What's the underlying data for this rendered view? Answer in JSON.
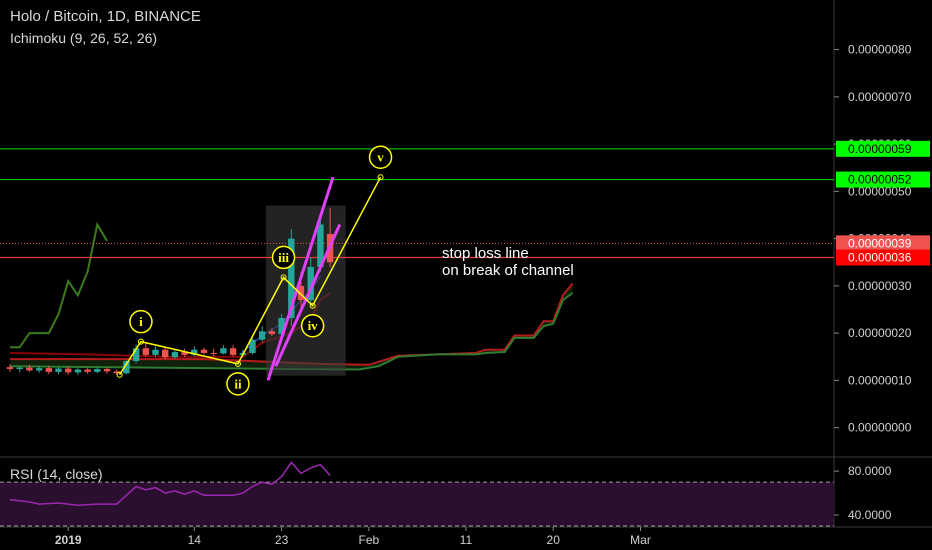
{
  "header": {
    "title": "Holo / Bitcoin, 1D, BINANCE",
    "indicator": "Ichimoku (9, 26, 52, 26)"
  },
  "rsi_label": "RSI (14, close)",
  "annotation": [
    "stop loss line",
    "on break of channel"
  ],
  "colors": {
    "background": "#000000",
    "bull": "#26a69a",
    "bear": "#ef5350",
    "lagging": "#3d7a1e",
    "cloud_green": "#2e7d32",
    "cloud_red": "#b71c1c",
    "wave": "#ffff00",
    "channel": "#e040fb",
    "target_line": "#00e000",
    "stop_line": "#e53935",
    "rsi": "#9c27b0"
  },
  "chart_data": [
    {
      "type": "candlestick",
      "title": "Holo / Bitcoin, 1D, BINANCE",
      "x_ticks": [
        {
          "label": "2019",
          "day": 6
        },
        {
          "label": "14",
          "day": 19
        },
        {
          "label": "23",
          "day": 28
        },
        {
          "label": "Feb",
          "day": 37
        },
        {
          "label": "11",
          "day": 47
        },
        {
          "label": "20",
          "day": 56
        },
        {
          "label": "Mar",
          "day": 65
        }
      ],
      "y_ticks": [
        "0.00000080",
        "0.00000070",
        "0.00000060",
        "0.00000050",
        "0.00000040",
        "0.00000030",
        "0.00000020",
        "0.00000010",
        "0.00000000"
      ],
      "y_tick_values": [
        0.8,
        0.7,
        0.6,
        0.5,
        0.4,
        0.3,
        0.2,
        0.1,
        0.0
      ],
      "y_unit": "x1e-6 BTC",
      "ylim": [
        -0.06,
        0.905
      ],
      "price_badges": [
        {
          "label": "0.00000059",
          "value": 0.59,
          "color": "#00ff00",
          "text_color": "#000000"
        },
        {
          "label": "0.00000052",
          "value": 0.525,
          "color": "#00ff00",
          "text_color": "#000000"
        },
        {
          "label": "0.00000039",
          "value": 0.39,
          "color": "#ef5350",
          "text_color": "#ffffff"
        },
        {
          "label": "0.00000036",
          "value": 0.36,
          "color": "#ff0000",
          "text_color": "#ffffff"
        }
      ],
      "candles": [
        {
          "day": 0,
          "o": 0.128,
          "h": 0.134,
          "l": 0.118,
          "c": 0.124
        },
        {
          "day": 1,
          "o": 0.124,
          "h": 0.13,
          "l": 0.117,
          "c": 0.127
        },
        {
          "day": 2,
          "o": 0.127,
          "h": 0.133,
          "l": 0.118,
          "c": 0.121
        },
        {
          "day": 3,
          "o": 0.121,
          "h": 0.131,
          "l": 0.116,
          "c": 0.126
        },
        {
          "day": 4,
          "o": 0.126,
          "h": 0.131,
          "l": 0.113,
          "c": 0.118
        },
        {
          "day": 5,
          "o": 0.118,
          "h": 0.128,
          "l": 0.113,
          "c": 0.125
        },
        {
          "day": 6,
          "o": 0.125,
          "h": 0.13,
          "l": 0.112,
          "c": 0.117
        },
        {
          "day": 7,
          "o": 0.117,
          "h": 0.126,
          "l": 0.112,
          "c": 0.123
        },
        {
          "day": 8,
          "o": 0.123,
          "h": 0.127,
          "l": 0.114,
          "c": 0.118
        },
        {
          "day": 9,
          "o": 0.118,
          "h": 0.128,
          "l": 0.115,
          "c": 0.124
        },
        {
          "day": 10,
          "o": 0.124,
          "h": 0.128,
          "l": 0.114,
          "c": 0.119
        },
        {
          "day": 11,
          "o": 0.119,
          "h": 0.123,
          "l": 0.112,
          "c": 0.115
        },
        {
          "day": 12,
          "o": 0.115,
          "h": 0.144,
          "l": 0.113,
          "c": 0.141
        },
        {
          "day": 13,
          "o": 0.141,
          "h": 0.176,
          "l": 0.136,
          "c": 0.168
        },
        {
          "day": 14,
          "o": 0.168,
          "h": 0.18,
          "l": 0.15,
          "c": 0.154
        },
        {
          "day": 15,
          "o": 0.154,
          "h": 0.172,
          "l": 0.15,
          "c": 0.165
        },
        {
          "day": 16,
          "o": 0.165,
          "h": 0.17,
          "l": 0.145,
          "c": 0.149
        },
        {
          "day": 17,
          "o": 0.149,
          "h": 0.166,
          "l": 0.146,
          "c": 0.16
        },
        {
          "day": 18,
          "o": 0.16,
          "h": 0.167,
          "l": 0.15,
          "c": 0.154
        },
        {
          "day": 19,
          "o": 0.154,
          "h": 0.172,
          "l": 0.15,
          "c": 0.165
        },
        {
          "day": 20,
          "o": 0.165,
          "h": 0.169,
          "l": 0.155,
          "c": 0.158
        },
        {
          "day": 21,
          "o": 0.158,
          "h": 0.167,
          "l": 0.152,
          "c": 0.157
        },
        {
          "day": 22,
          "o": 0.157,
          "h": 0.175,
          "l": 0.155,
          "c": 0.168
        },
        {
          "day": 23,
          "o": 0.168,
          "h": 0.174,
          "l": 0.15,
          "c": 0.154
        },
        {
          "day": 24,
          "o": 0.154,
          "h": 0.164,
          "l": 0.15,
          "c": 0.158
        },
        {
          "day": 25,
          "o": 0.158,
          "h": 0.19,
          "l": 0.155,
          "c": 0.186
        },
        {
          "day": 26,
          "o": 0.186,
          "h": 0.215,
          "l": 0.18,
          "c": 0.204
        },
        {
          "day": 27,
          "o": 0.204,
          "h": 0.21,
          "l": 0.194,
          "c": 0.198
        },
        {
          "day": 28,
          "o": 0.198,
          "h": 0.24,
          "l": 0.195,
          "c": 0.232
        },
        {
          "day": 29,
          "o": 0.232,
          "h": 0.42,
          "l": 0.215,
          "c": 0.4
        },
        {
          "day": 30,
          "o": 0.3,
          "h": 0.33,
          "l": 0.255,
          "c": 0.27
        },
        {
          "day": 31,
          "o": 0.27,
          "h": 0.36,
          "l": 0.26,
          "c": 0.34
        },
        {
          "day": 32,
          "o": 0.34,
          "h": 0.44,
          "l": 0.33,
          "c": 0.43
        },
        {
          "day": 33,
          "o": 0.41,
          "h": 0.465,
          "l": 0.34,
          "c": 0.35
        }
      ],
      "lagging_span": [
        {
          "day": 0,
          "v": 0.17
        },
        {
          "day": 1,
          "v": 0.17
        },
        {
          "day": 2,
          "v": 0.2
        },
        {
          "day": 3,
          "v": 0.2
        },
        {
          "day": 4,
          "v": 0.2
        },
        {
          "day": 5,
          "v": 0.24
        },
        {
          "day": 6,
          "v": 0.31
        },
        {
          "day": 7,
          "v": 0.28
        },
        {
          "day": 8,
          "v": 0.33
        },
        {
          "day": 9,
          "v": 0.43
        },
        {
          "day": 10,
          "v": 0.395
        }
      ],
      "cloud_top": [
        {
          "day": 0,
          "v": 0.145
        },
        {
          "day": 20,
          "v": 0.145
        },
        {
          "day": 26,
          "v": 0.14
        },
        {
          "day": 32,
          "v": 0.135
        },
        {
          "day": 37,
          "v": 0.133
        },
        {
          "day": 40,
          "v": 0.152
        },
        {
          "day": 44,
          "v": 0.155
        },
        {
          "day": 48,
          "v": 0.158
        },
        {
          "day": 49,
          "v": 0.165
        },
        {
          "day": 51,
          "v": 0.165
        },
        {
          "day": 52,
          "v": 0.195
        },
        {
          "day": 54,
          "v": 0.195
        },
        {
          "day": 55,
          "v": 0.225
        },
        {
          "day": 56,
          "v": 0.225
        },
        {
          "day": 57,
          "v": 0.28
        },
        {
          "day": 58,
          "v": 0.305
        }
      ],
      "cloud_bottom": [
        {
          "day": 0,
          "v": 0.13
        },
        {
          "day": 10,
          "v": 0.128
        },
        {
          "day": 20,
          "v": 0.126
        },
        {
          "day": 30,
          "v": 0.124
        },
        {
          "day": 36,
          "v": 0.123
        },
        {
          "day": 38,
          "v": 0.13
        },
        {
          "day": 40,
          "v": 0.15
        },
        {
          "day": 44,
          "v": 0.155
        },
        {
          "day": 48,
          "v": 0.155
        },
        {
          "day": 49,
          "v": 0.158
        },
        {
          "day": 51,
          "v": 0.16
        },
        {
          "day": 52,
          "v": 0.19
        },
        {
          "day": 54,
          "v": 0.19
        },
        {
          "day": 55,
          "v": 0.215
        },
        {
          "day": 56,
          "v": 0.22
        },
        {
          "day": 57,
          "v": 0.27
        },
        {
          "day": 58,
          "v": 0.285
        }
      ],
      "kijun": [
        {
          "day": 0,
          "v": 0.158
        },
        {
          "day": 8,
          "v": 0.155
        },
        {
          "day": 16,
          "v": 0.15
        },
        {
          "day": 24,
          "v": 0.15
        },
        {
          "day": 26,
          "v": 0.18
        },
        {
          "day": 29,
          "v": 0.2
        },
        {
          "day": 31,
          "v": 0.23
        },
        {
          "day": 32,
          "v": 0.27
        },
        {
          "day": 33,
          "v": 0.285
        }
      ],
      "tenkan": [
        {
          "day": 24,
          "v": 0.16
        },
        {
          "day": 26,
          "v": 0.195
        },
        {
          "day": 28,
          "v": 0.22
        },
        {
          "day": 30,
          "v": 0.27
        },
        {
          "day": 31,
          "v": 0.29
        },
        {
          "day": 32,
          "v": 0.32
        }
      ],
      "wave_points": [
        {
          "label": "i",
          "day": 13.5,
          "price": 0.182,
          "label_offset": 1
        },
        {
          "label": "ii",
          "day": 23.5,
          "price": 0.135,
          "label_offset": -1
        },
        {
          "label": "iii",
          "day": 28.2,
          "price": 0.318,
          "label_offset": 1
        },
        {
          "label": "iv",
          "day": 31.2,
          "price": 0.258,
          "label_offset": -1
        },
        {
          "label": "v",
          "day": 38.2,
          "price": 0.53,
          "label_offset": 1
        }
      ],
      "wave_start": {
        "day": 11.3,
        "price": 0.112
      },
      "channel_lines": [
        [
          {
            "day": 26.6,
            "price": 0.1
          },
          {
            "day": 33.3,
            "price": 0.53
          }
        ],
        [
          {
            "day": 27.4,
            "price": 0.13
          },
          {
            "day": 34.0,
            "price": 0.43
          }
        ]
      ],
      "channel_box": {
        "day_start": 26.4,
        "day_end": 34.6,
        "top": 0.47,
        "bottom": 0.11
      }
    },
    {
      "type": "line",
      "title": "RSI (14, close)",
      "y_ticks": [
        "80.0000",
        "40.0000"
      ],
      "y_tick_values": [
        80,
        40
      ],
      "ylim": [
        30,
        92
      ],
      "bands": [
        70,
        30
      ],
      "values": [
        {
          "day": 0,
          "v": 54
        },
        {
          "day": 2,
          "v": 52
        },
        {
          "day": 3,
          "v": 50
        },
        {
          "day": 5,
          "v": 51
        },
        {
          "day": 7,
          "v": 49
        },
        {
          "day": 9,
          "v": 50
        },
        {
          "day": 11,
          "v": 50
        },
        {
          "day": 12,
          "v": 58
        },
        {
          "day": 13,
          "v": 66
        },
        {
          "day": 14,
          "v": 63
        },
        {
          "day": 15,
          "v": 65
        },
        {
          "day": 16,
          "v": 60
        },
        {
          "day": 17,
          "v": 62
        },
        {
          "day": 18,
          "v": 59
        },
        {
          "day": 19,
          "v": 62
        },
        {
          "day": 20,
          "v": 58
        },
        {
          "day": 22,
          "v": 58
        },
        {
          "day": 23,
          "v": 58
        },
        {
          "day": 24,
          "v": 60
        },
        {
          "day": 25,
          "v": 66
        },
        {
          "day": 26,
          "v": 70
        },
        {
          "day": 27,
          "v": 68
        },
        {
          "day": 28,
          "v": 75
        },
        {
          "day": 29,
          "v": 88
        },
        {
          "day": 30,
          "v": 78
        },
        {
          "day": 31,
          "v": 83
        },
        {
          "day": 32,
          "v": 86
        },
        {
          "day": 33,
          "v": 76
        }
      ]
    }
  ]
}
